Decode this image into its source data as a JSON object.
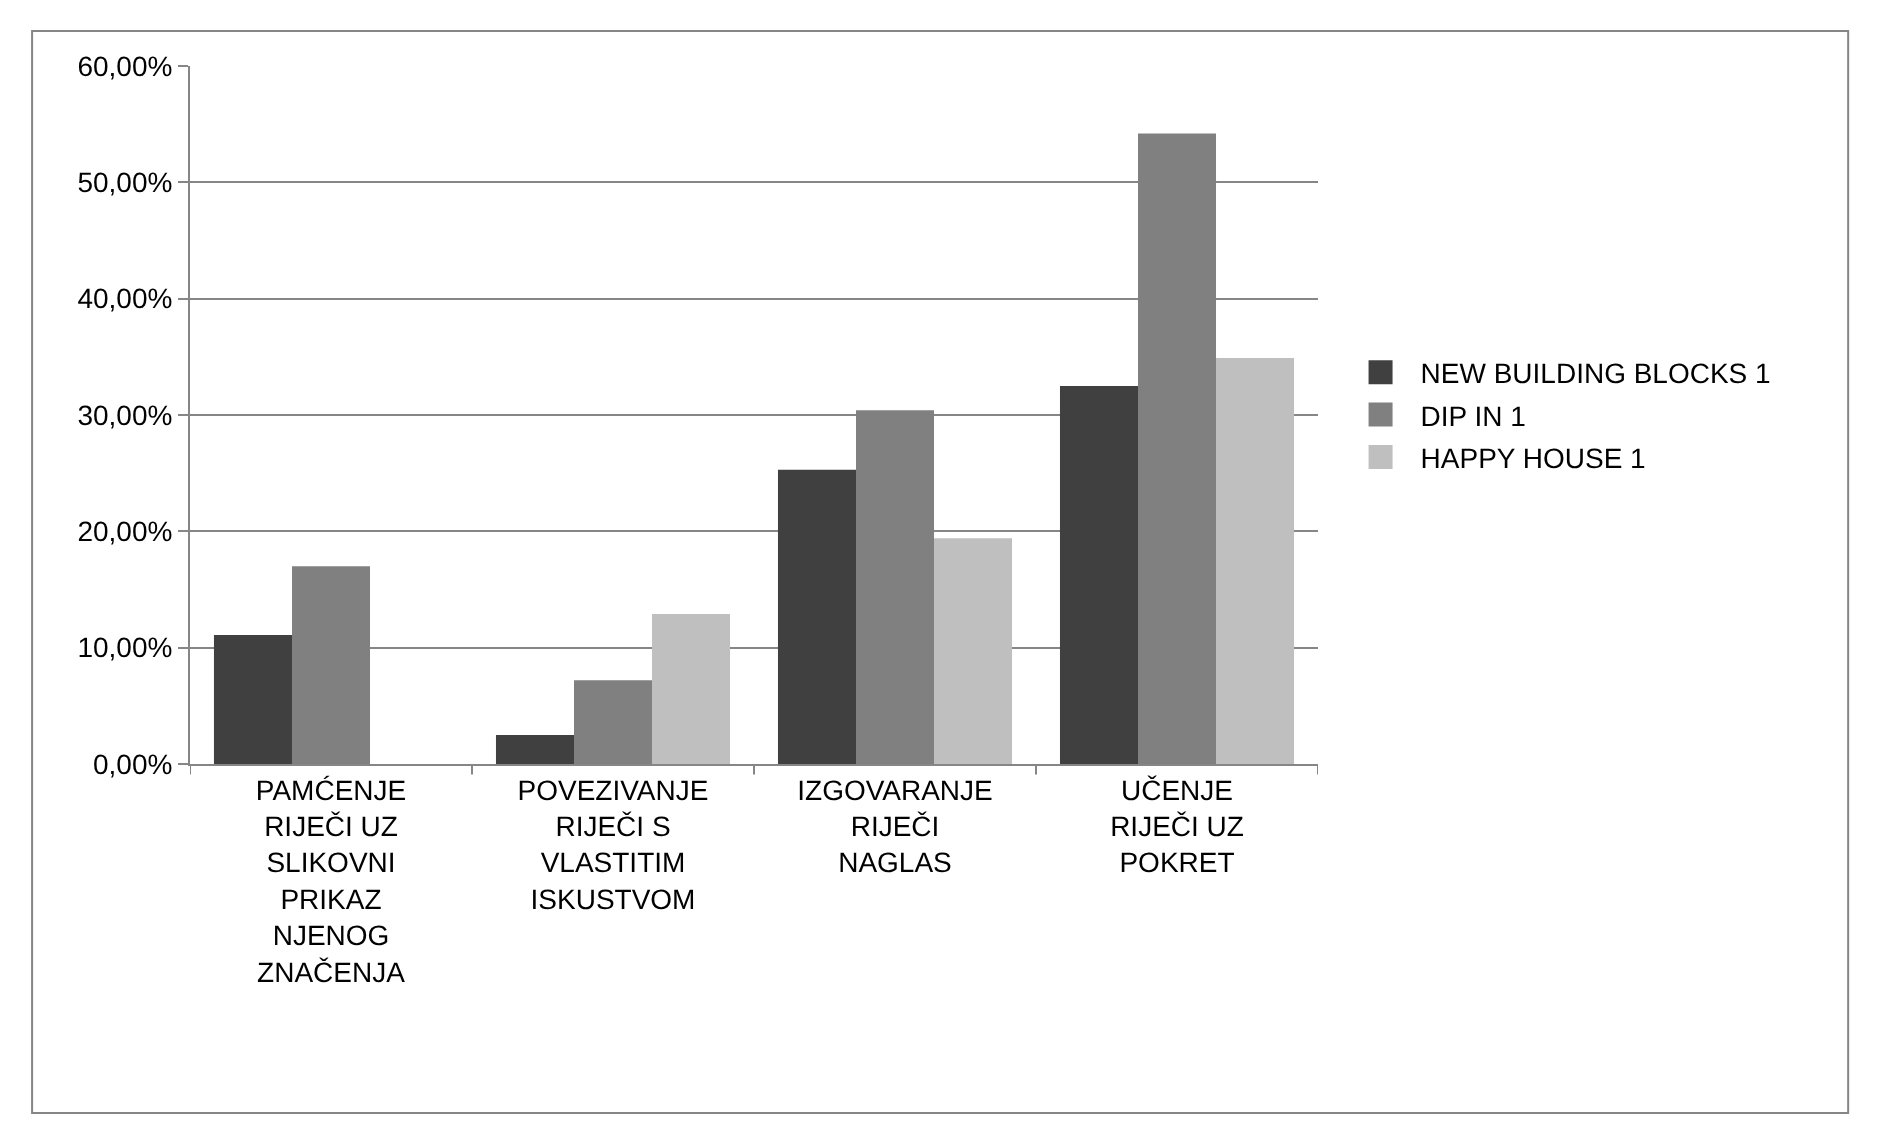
{
  "chart_data": {
    "type": "bar",
    "categories": [
      "PAMĆENJE RIJEČI UZ SLIKOVNI PRIKAZ NJENOG ZNAČENJA",
      "POVEZIVANJE RIJEČI S VLASTITIM ISKUSTVOM",
      "IZGOVARANJE RIJEČI NAGLAS",
      "UČENJE RIJEČI UZ POKRET"
    ],
    "series": [
      {
        "name": "NEW BUILDING BLOCKS 1",
        "color": "#404040",
        "values": [
          11.1,
          2.5,
          25.3,
          32.5
        ]
      },
      {
        "name": "DIP IN 1",
        "color": "#808080",
        "values": [
          17.0,
          7.2,
          30.4,
          54.2
        ]
      },
      {
        "name": "HAPPY HOUSE 1",
        "color": "#bfbfbf",
        "values": [
          0,
          12.9,
          19.4,
          34.9
        ]
      }
    ],
    "ylim": [
      0,
      60
    ],
    "yticks": [
      {
        "value": 0,
        "label": "0,00%"
      },
      {
        "value": 10,
        "label": "10,00%"
      },
      {
        "value": 20,
        "label": "20,00%"
      },
      {
        "value": 30,
        "label": "30,00%"
      },
      {
        "value": 40,
        "label": "40,00%"
      },
      {
        "value": 50,
        "label": "50,00%"
      },
      {
        "value": 60,
        "label": "60,00%"
      }
    ],
    "grid": "y",
    "legend": "right"
  }
}
